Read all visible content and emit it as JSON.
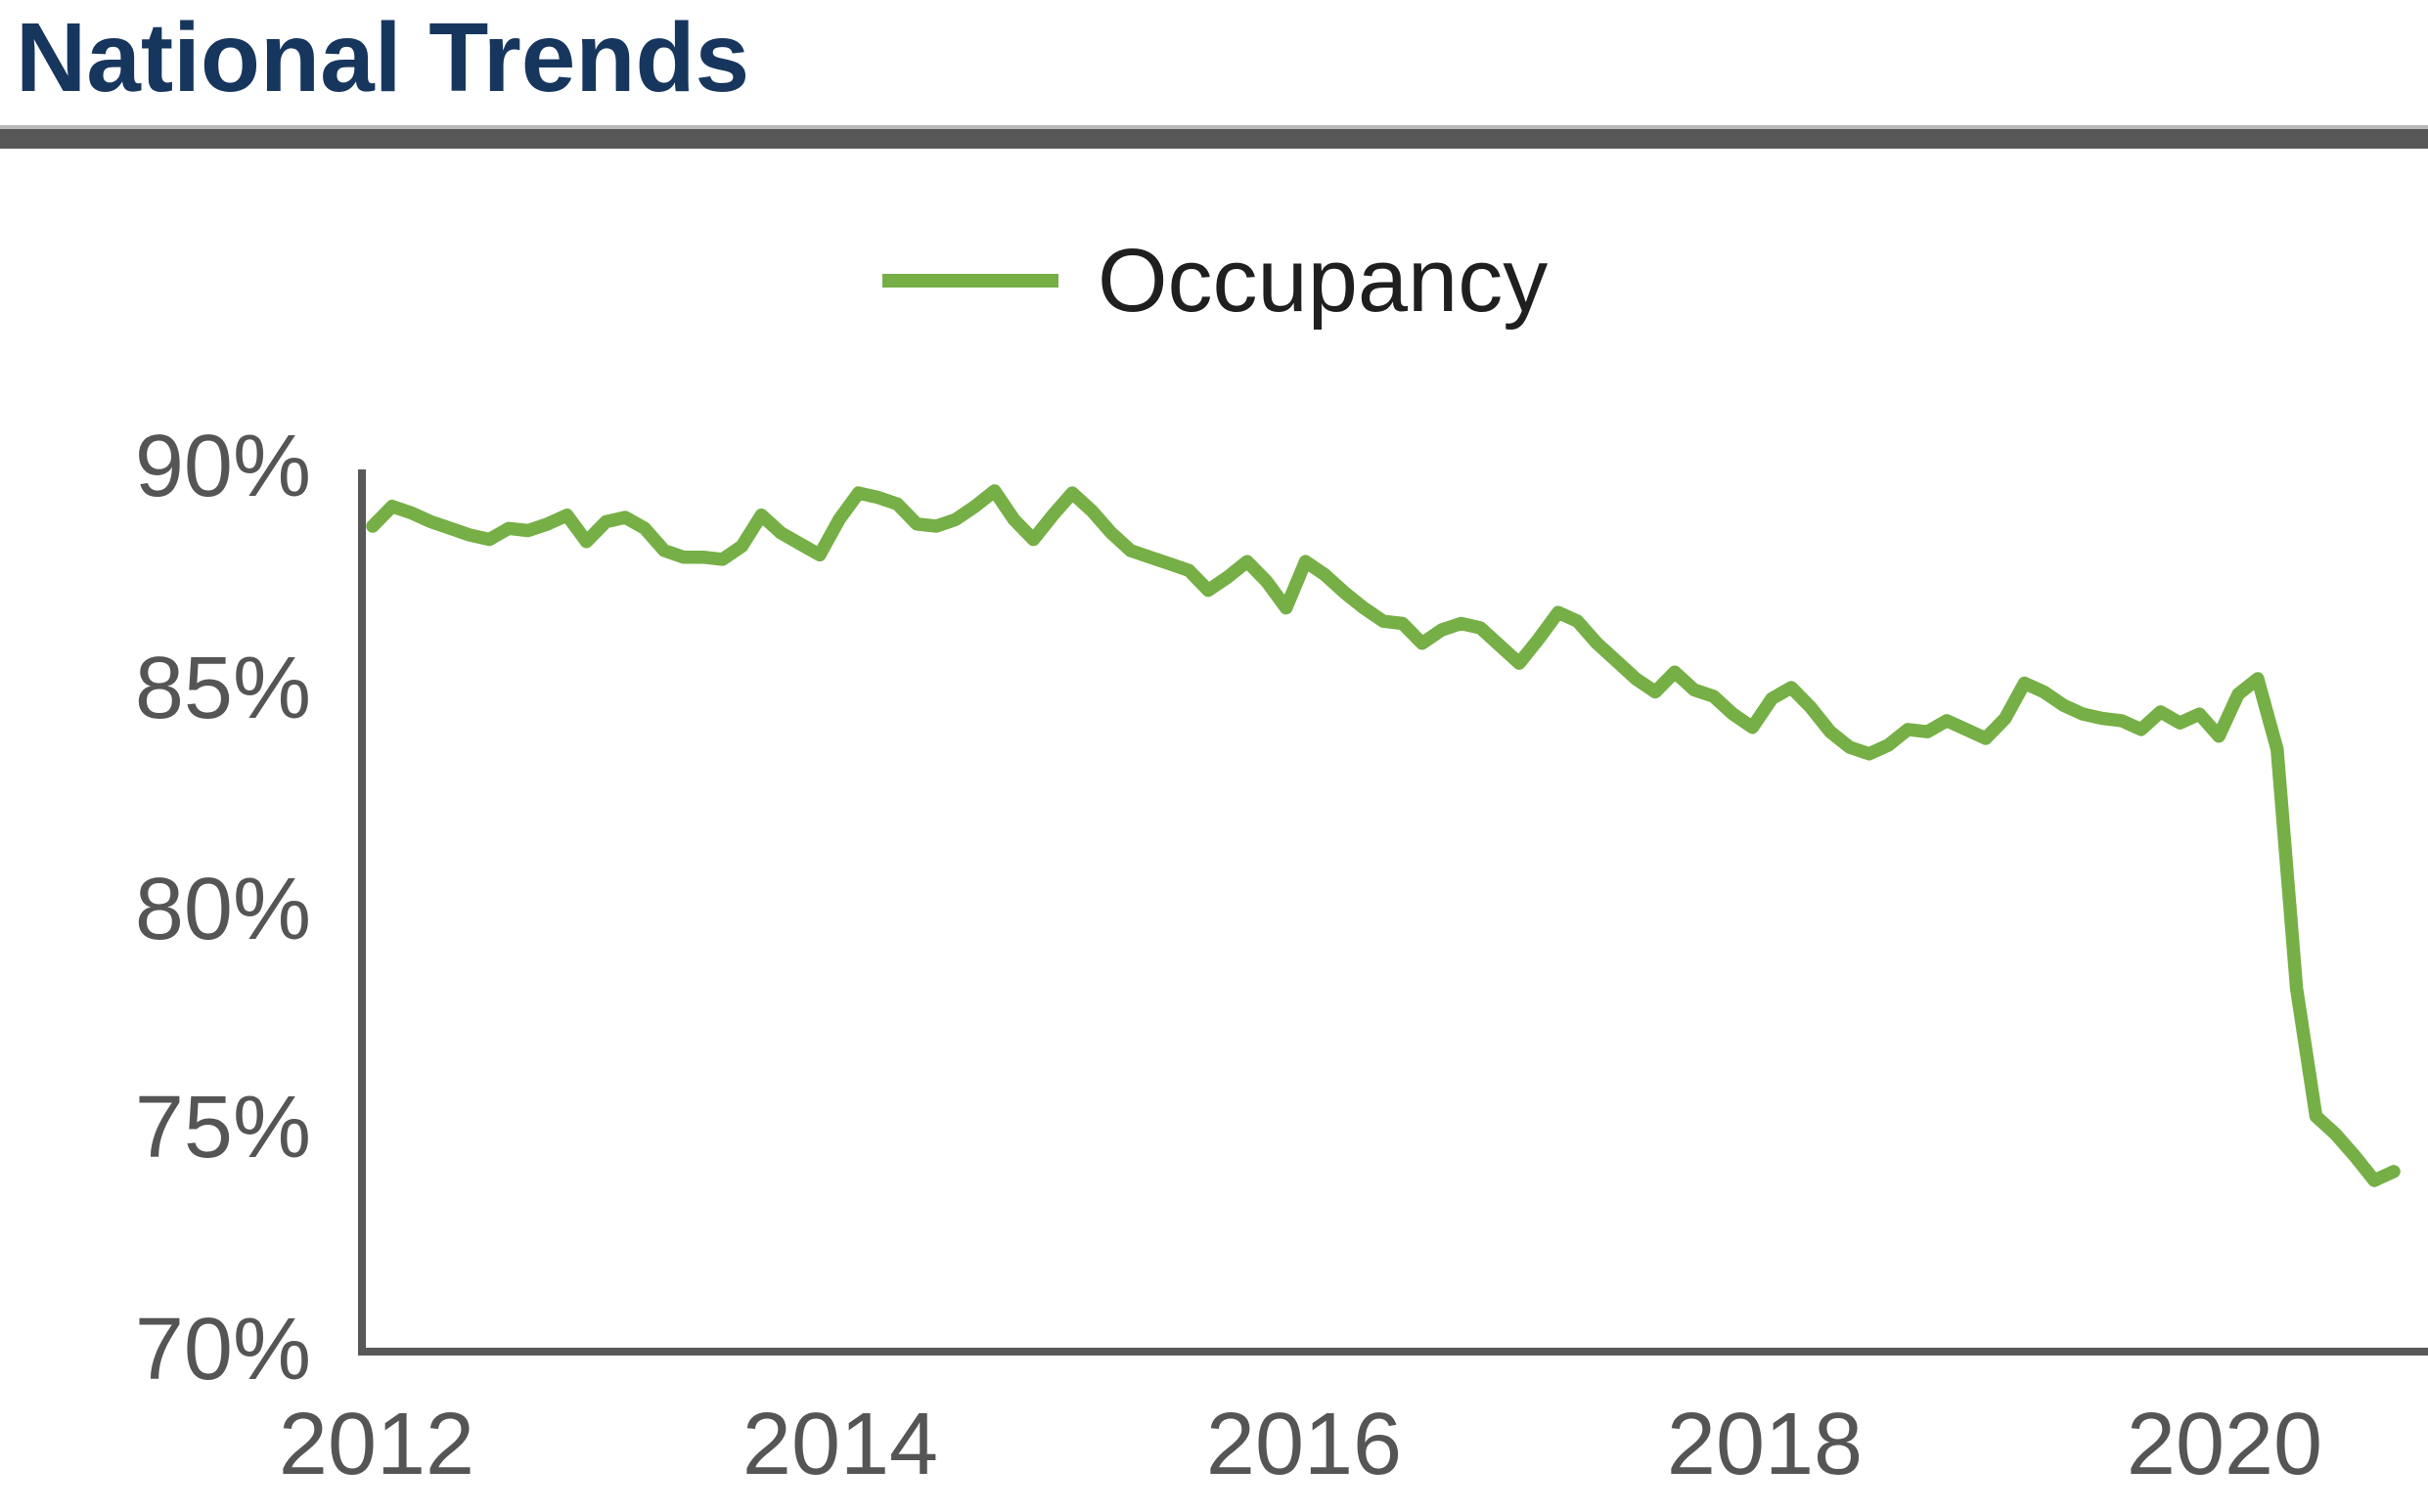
{
  "page": {
    "title": "National Trends"
  },
  "legend": {
    "label": "Occupancy"
  },
  "colors": {
    "title_text": "#17365D",
    "divider_bar": "#575757",
    "line_green": "#76AF46",
    "axis_gray": "#595959",
    "tick_text_gray": "#555555",
    "legend_text": "#1f1f1f"
  },
  "chart_data": {
    "type": "line",
    "title": "National Trends",
    "xlabel": "",
    "ylabel": "",
    "grid": false,
    "legend_position": "top-center",
    "ylim": [
      70,
      90
    ],
    "y_tick_labels": [
      "90%",
      "85%",
      "80%",
      "75%",
      "70%"
    ],
    "x_tick_labels": [
      "2012",
      "2014",
      "2016",
      "2018",
      "2020"
    ],
    "x_start": "2012-01",
    "x_end": "2020-09",
    "x_frequency": "monthly",
    "series": [
      {
        "name": "Occupancy",
        "unit": "%",
        "values": [
          88.65,
          89.1,
          88.95,
          88.75,
          88.6,
          88.45,
          88.35,
          88.6,
          88.55,
          88.7,
          88.9,
          88.3,
          88.75,
          88.85,
          88.6,
          88.1,
          87.95,
          87.95,
          87.9,
          88.2,
          88.9,
          88.5,
          88.25,
          88.0,
          88.8,
          89.4,
          89.3,
          89.15,
          88.7,
          88.65,
          88.8,
          89.1,
          89.45,
          88.8,
          88.35,
          88.9,
          89.4,
          89.0,
          88.5,
          88.1,
          87.95,
          87.8,
          87.65,
          87.2,
          87.5,
          87.85,
          87.4,
          86.8,
          87.85,
          87.55,
          87.15,
          86.8,
          86.5,
          86.45,
          86.0,
          86.3,
          86.45,
          86.35,
          85.95,
          85.55,
          86.1,
          86.7,
          86.5,
          86.0,
          85.6,
          85.2,
          84.9,
          85.35,
          84.95,
          84.8,
          84.4,
          84.1,
          84.75,
          85.0,
          84.55,
          84.0,
          83.65,
          83.5,
          83.7,
          84.05,
          84.0,
          84.25,
          84.05,
          83.85,
          84.3,
          85.1,
          84.9,
          84.6,
          84.4,
          84.3,
          84.25,
          84.05,
          84.45,
          84.2,
          84.4,
          83.9,
          84.85,
          85.2,
          83.6,
          78.2,
          75.3,
          74.9,
          74.4,
          73.85,
          74.05
        ]
      }
    ]
  }
}
